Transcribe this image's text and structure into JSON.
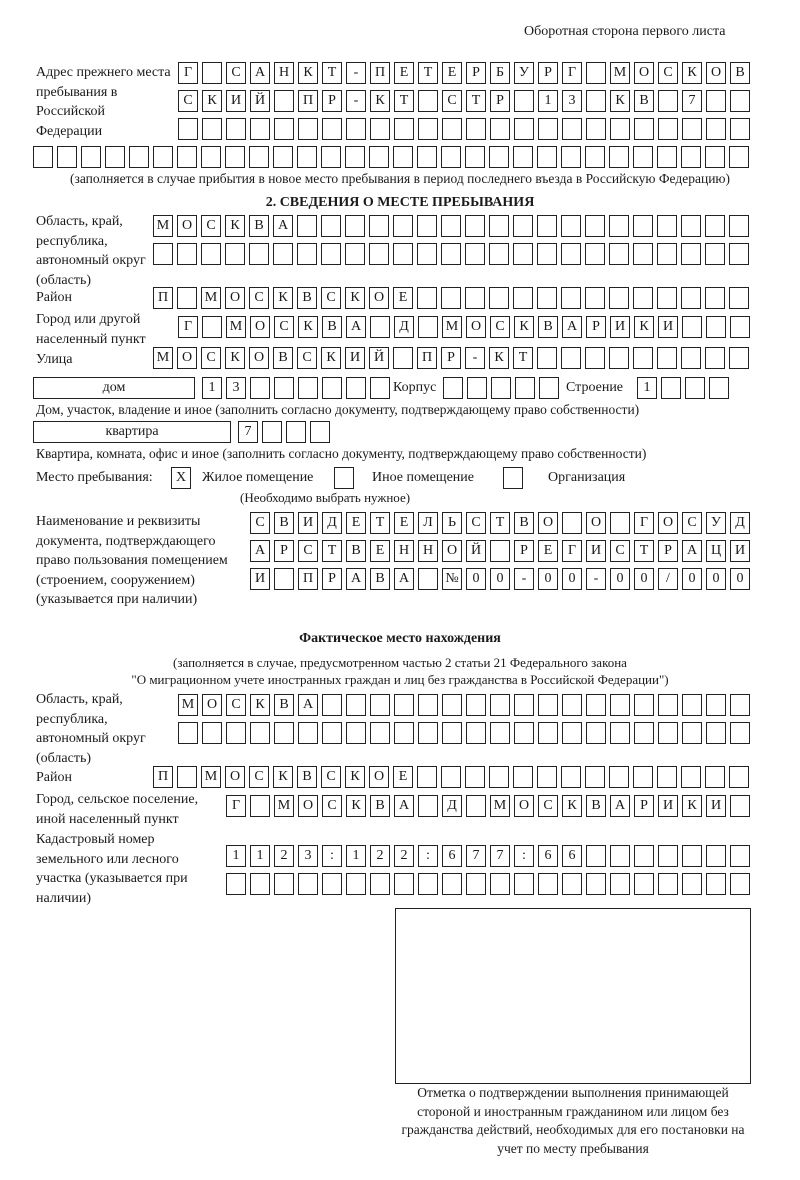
{
  "header": {
    "page_side": "Оборотная сторона первого листа"
  },
  "previous_address": {
    "label": "Адрес прежнего места пребывания в Российской Федерации",
    "rows": [
      [
        "Г",
        "",
        "С",
        "А",
        "Н",
        "К",
        "Т",
        "-",
        "П",
        "Е",
        "Т",
        "Е",
        "Р",
        "Б",
        "У",
        "Р",
        "Г",
        "",
        "М",
        "О",
        "С",
        "К",
        "О",
        "В"
      ],
      [
        "С",
        "К",
        "И",
        "Й",
        "",
        "П",
        "Р",
        "-",
        "К",
        "Т",
        "",
        "С",
        "Т",
        "Р",
        "",
        "1",
        "3",
        "",
        "К",
        "В",
        "",
        "7",
        "",
        ""
      ],
      [
        "",
        "",
        "",
        "",
        "",
        "",
        "",
        "",
        "",
        "",
        "",
        "",
        "",
        "",
        "",
        "",
        "",
        "",
        "",
        "",
        "",
        "",
        "",
        ""
      ],
      [
        "",
        "",
        "",
        "",
        "",
        "",
        "",
        "",
        "",
        "",
        "",
        "",
        "",
        "",
        "",
        "",
        "",
        "",
        "",
        "",
        "",
        "",
        "",
        "",
        "",
        "",
        "",
        "",
        "",
        ""
      ]
    ],
    "note": "(заполняется в случае прибытия в новое место пребывания в период последнего въезда в Российскую Федерацию)"
  },
  "section2": {
    "title": "2. СВЕДЕНИЯ О МЕСТЕ ПРЕБЫВАНИЯ",
    "region_label": "Область, край, республика, автономный округ (область)",
    "region_rows": [
      [
        "М",
        "О",
        "С",
        "К",
        "В",
        "А",
        "",
        "",
        "",
        "",
        "",
        "",
        "",
        "",
        "",
        "",
        "",
        "",
        "",
        "",
        "",
        "",
        "",
        "",
        ""
      ],
      [
        "",
        "",
        "",
        "",
        "",
        "",
        "",
        "",
        "",
        "",
        "",
        "",
        "",
        "",
        "",
        "",
        "",
        "",
        "",
        "",
        "",
        "",
        "",
        "",
        ""
      ]
    ],
    "district_label": "Район",
    "district": [
      "П",
      "",
      "М",
      "О",
      "С",
      "К",
      "В",
      "С",
      "К",
      "О",
      "Е",
      "",
      "",
      "",
      "",
      "",
      "",
      "",
      "",
      "",
      "",
      "",
      "",
      "",
      ""
    ],
    "city_label": "Город или другой населенный пункт",
    "city": [
      "Г",
      "",
      "М",
      "О",
      "С",
      "К",
      "В",
      "А",
      "",
      "Д",
      "",
      "М",
      "О",
      "С",
      "К",
      "В",
      "А",
      "Р",
      "И",
      "К",
      "И",
      "",
      "",
      ""
    ],
    "street_label": "Улица",
    "street": [
      "М",
      "О",
      "С",
      "К",
      "О",
      "В",
      "С",
      "К",
      "И",
      "Й",
      "",
      "П",
      "Р",
      "-",
      "К",
      "Т",
      "",
      "",
      "",
      "",
      "",
      "",
      "",
      "",
      ""
    ],
    "house_type": "дом",
    "house": [
      "1",
      "3",
      "",
      "",
      "",
      "",
      "",
      ""
    ],
    "korpus_label": "Корпус",
    "korpus": [
      "",
      "",
      "",
      "",
      ""
    ],
    "building_label": "Строение",
    "building": [
      "1",
      "",
      "",
      ""
    ],
    "house_note": "Дом, участок, владение и иное (заполнить согласно документу, подтверждающему право собственности)",
    "apt_type": "квартира",
    "apt": [
      "7",
      "",
      "",
      ""
    ],
    "apt_note": "Квартира, комната, офис и иное (заполнить согласно документу, подтверждающему право собственности)",
    "stay_label": "Место пребывания:",
    "stay_options": [
      {
        "label": "Жилое помещение",
        "mark": "X",
        "checked": true
      },
      {
        "label": "Иное помещение",
        "mark": "",
        "checked": false
      },
      {
        "label": "Организация",
        "mark": "",
        "checked": false
      }
    ],
    "stay_note": "(Необходимо выбрать нужное)",
    "doc_label": "Наименование и реквизиты документа, подтверждающего право пользования помещением (строением, сооружением) (указывается при наличии)",
    "doc_rows": [
      [
        "С",
        "В",
        "И",
        "Д",
        "Е",
        "Т",
        "Е",
        "Л",
        "Ь",
        "С",
        "Т",
        "В",
        "О",
        "",
        "О",
        "",
        "Г",
        "О",
        "С",
        "У",
        "Д"
      ],
      [
        "А",
        "Р",
        "С",
        "Т",
        "В",
        "Е",
        "Н",
        "Н",
        "О",
        "Й",
        "",
        "Р",
        "Е",
        "Г",
        "И",
        "С",
        "Т",
        "Р",
        "А",
        "Ц",
        "И"
      ],
      [
        "И",
        "",
        "П",
        "Р",
        "А",
        "В",
        "А",
        "",
        "№",
        "0",
        "0",
        "-",
        "0",
        "0",
        "-",
        "0",
        "0",
        "/",
        "0",
        "0",
        "0"
      ]
    ]
  },
  "actual": {
    "title": "Фактическое место нахождения",
    "note1": "(заполняется в случае, предусмотренном частью 2 статьи 21 Федерального закона",
    "note2": "\"О миграционном учете иностранных граждан и лиц без гражданства в Российской Федерации\")",
    "region_label": "Область, край, республика, автономный округ (область)",
    "region_rows": [
      [
        "М",
        "О",
        "С",
        "К",
        "В",
        "А",
        "",
        "",
        "",
        "",
        "",
        "",
        "",
        "",
        "",
        "",
        "",
        "",
        "",
        "",
        "",
        "",
        "",
        ""
      ],
      [
        "",
        "",
        "",
        "",
        "",
        "",
        "",
        "",
        "",
        "",
        "",
        "",
        "",
        "",
        "",
        "",
        "",
        "",
        "",
        "",
        "",
        "",
        "",
        ""
      ]
    ],
    "district_label": "Район",
    "district": [
      "П",
      "",
      "М",
      "О",
      "С",
      "К",
      "В",
      "С",
      "К",
      "О",
      "Е",
      "",
      "",
      "",
      "",
      "",
      "",
      "",
      "",
      "",
      "",
      "",
      "",
      "",
      ""
    ],
    "city_label": "Город, сельское поселение, иной населенный пункт",
    "city": [
      "Г",
      "",
      "М",
      "О",
      "С",
      "К",
      "В",
      "А",
      "",
      "Д",
      "",
      "М",
      "О",
      "С",
      "К",
      "В",
      "А",
      "Р",
      "И",
      "К",
      "И",
      ""
    ],
    "cadastre_label": "Кадастровый номер земельного или лесного участка (указывается при наличии)",
    "cadastre_rows": [
      [
        "1",
        "1",
        "2",
        "3",
        ":",
        "1",
        "2",
        "2",
        ":",
        "6",
        "7",
        "7",
        ":",
        "6",
        "6",
        "",
        "",
        "",
        "",
        "",
        "",
        ""
      ],
      [
        "",
        "",
        "",
        "",
        "",
        "",
        "",
        "",
        "",
        "",
        "",
        "",
        "",
        "",
        "",
        "",
        "",
        "",
        "",
        "",
        "",
        ""
      ]
    ]
  },
  "confirmation": {
    "caption": "Отметка о подтверждении выполнения принимающей стороной и иностранным гражданином или лицом без гражданства действий, необходимых для его постановки на учет по месту пребывания"
  }
}
